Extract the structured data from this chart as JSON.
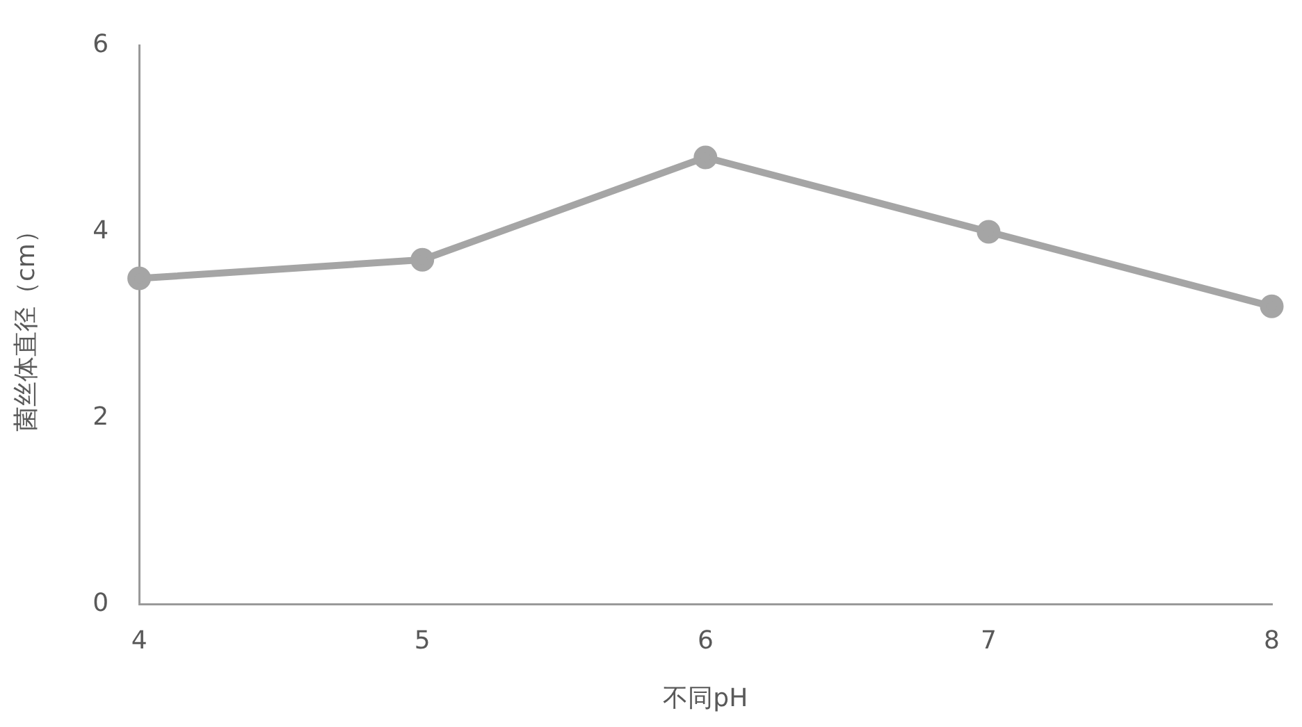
{
  "chart_data": {
    "type": "line",
    "xlabel": "不同pH",
    "ylabel": "菌丝体直径（cm）",
    "categories": [
      "4",
      "5",
      "6",
      "7",
      "8"
    ],
    "series": [
      {
        "color": "#a5a5a5",
        "values": [
          3.5,
          3.7,
          4.8,
          4.0,
          3.2
        ]
      }
    ],
    "ylim": [
      0,
      6
    ],
    "yticks": [
      0,
      2,
      4,
      6
    ],
    "grid": false,
    "legend": false,
    "marker": "circle",
    "line_style": "solid"
  }
}
